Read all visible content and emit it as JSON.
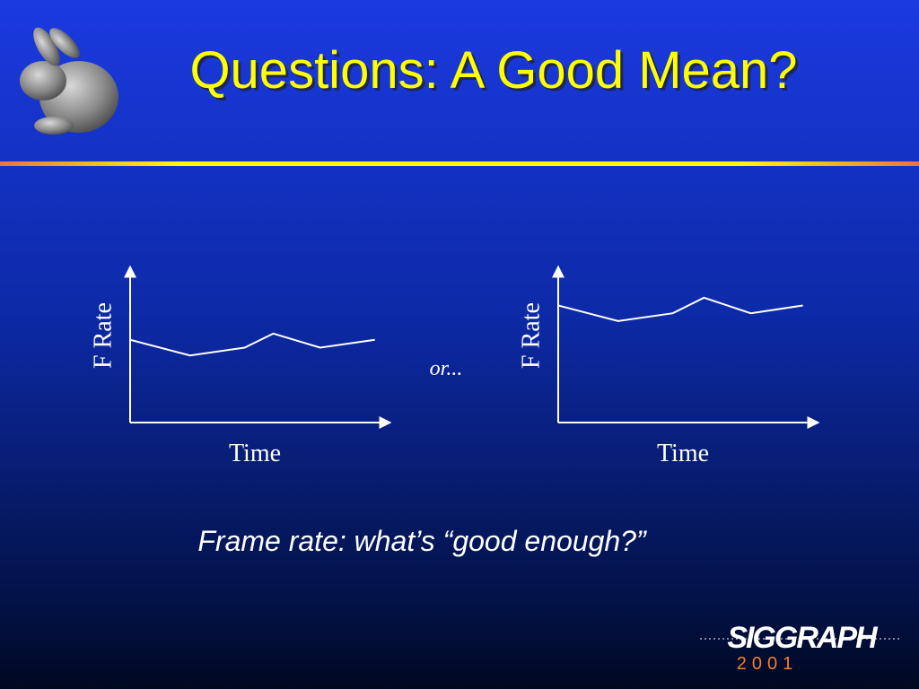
{
  "title": "Questions: A Good Mean?",
  "chart_data": [
    {
      "type": "line",
      "ylabel": "F Rate",
      "xlabel": "Time",
      "color": "#ffffff",
      "x": [
        0,
        23,
        44,
        55,
        73,
        94
      ],
      "values": [
        53,
        43,
        48,
        57,
        48,
        53
      ],
      "xlim": [
        0,
        100
      ],
      "ylim": [
        0,
        100
      ]
    },
    {
      "type": "line",
      "ylabel": "F Rate",
      "xlabel": "Time",
      "color": "#ffffff",
      "x": [
        0,
        23,
        44,
        56,
        74,
        94
      ],
      "values": [
        75,
        65,
        70,
        80,
        70,
        75
      ],
      "xlim": [
        0,
        100
      ],
      "ylim": [
        0,
        100
      ]
    }
  ],
  "separator": "or...",
  "caption": "Frame rate: what’s “good enough?”",
  "logo": {
    "name": "SIGGRAPH",
    "year": "2001"
  }
}
